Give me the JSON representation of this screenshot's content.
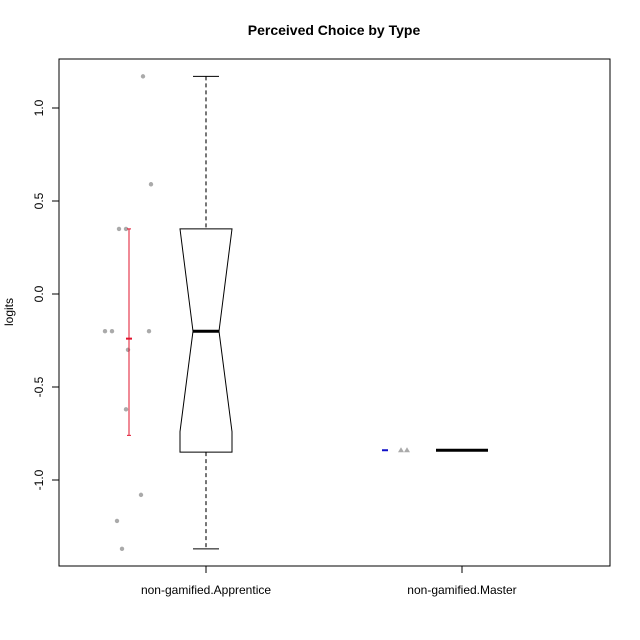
{
  "chart_data": {
    "type": "box",
    "title": "Perceived Choice by Type",
    "xlabel": "",
    "ylabel": "logits",
    "ylim": [
      -1.45,
      1.27
    ],
    "y_ticks": [
      -1.0,
      -0.5,
      0.0,
      0.5,
      1.0
    ],
    "y_tick_labels": [
      "-1.0",
      "-0.5",
      "0.0",
      "0.5",
      "1.0"
    ],
    "categories": [
      "non-gamified.Apprentice",
      "non-gamified.Master"
    ],
    "boxes": [
      {
        "category": "non-gamified.Apprentice",
        "whisker_low": -1.37,
        "q1": -0.85,
        "median": -0.2,
        "q3": 0.35,
        "whisker_high": 1.17,
        "notch_low": -0.74,
        "notch_high": 0.35
      },
      {
        "category": "non-gamified.Master",
        "whisker_low": -0.84,
        "q1": -0.84,
        "median": -0.84,
        "q3": -0.84,
        "whisker_high": -0.84
      }
    ],
    "points": [
      {
        "category": "non-gamified.Apprentice",
        "values": [
          1.17,
          0.59,
          0.35,
          0.35,
          -0.2,
          -0.2,
          -0.2,
          -0.3,
          -0.62,
          -1.08,
          -1.22,
          -1.37
        ],
        "shape": "circle"
      },
      {
        "category": "non-gamified.Master",
        "values": [
          -0.84,
          -0.84
        ],
        "shape": "triangle"
      }
    ],
    "mean_ci": [
      {
        "category": "non-gamified.Apprentice",
        "mean": -0.24,
        "low": -0.76,
        "high": 0.35,
        "color": "#e0142e"
      },
      {
        "category": "non-gamified.Master",
        "mean": -0.84,
        "low": -0.84,
        "high": -0.84,
        "color": "#1010c8"
      }
    ],
    "colors": {
      "points": "#aaaaaa",
      "box": "#000000",
      "whisker": "#555555"
    }
  }
}
